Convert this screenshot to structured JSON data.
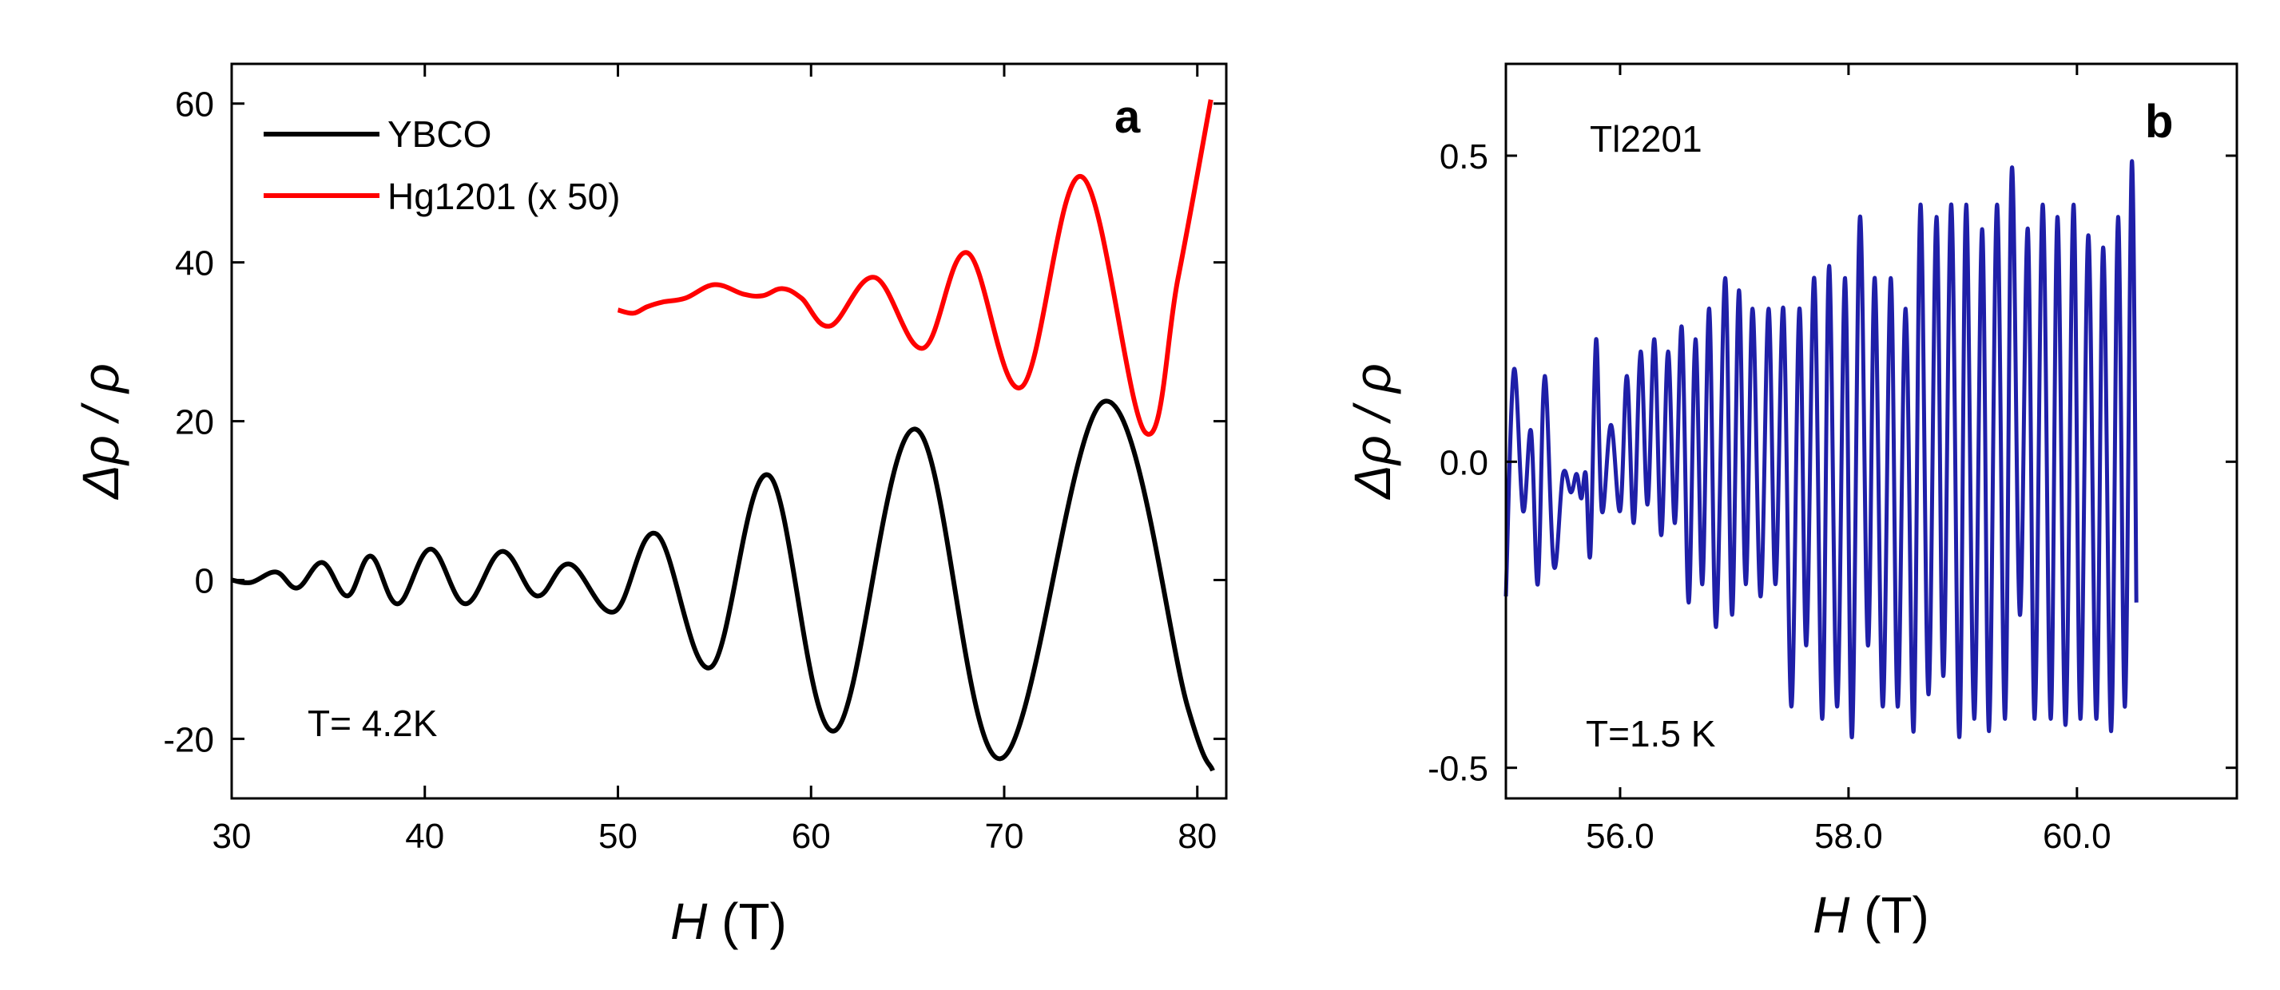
{
  "chart_data": [
    {
      "panel": "a",
      "type": "line",
      "xlabel_italic": "H",
      "xlabel_unit": " (T)",
      "ylabel": "Δρ / ρ",
      "xlim": [
        30,
        81.5
      ],
      "ylim": [
        -27.5,
        65
      ],
      "xticks": [
        30,
        40,
        50,
        60,
        70,
        80
      ],
      "yticks": [
        -20,
        0,
        20,
        40,
        60
      ],
      "annotation": "T= 4.2K",
      "legend_position": "top-left",
      "series": [
        {
          "name": "YBCO",
          "color": "#000000",
          "x": [
            30.0,
            31.0,
            32.3,
            33.4,
            34.7,
            36.0,
            37.2,
            38.6,
            40.3,
            42.1,
            44.0,
            45.8,
            47.5,
            49.8,
            52.0,
            54.8,
            57.8,
            61.2,
            65.4,
            69.8,
            75.2,
            79.5,
            80.8
          ],
          "y": [
            0.0,
            -0.3,
            1.0,
            -1.0,
            2.2,
            -2.0,
            3.0,
            -3.0,
            3.9,
            -3.0,
            3.6,
            -2.0,
            2.0,
            -4.0,
            5.8,
            -11.0,
            13.2,
            -19.0,
            19.0,
            -22.5,
            22.5,
            -16.0,
            -24.0
          ]
        },
        {
          "name": "Hg1201 (x 50)",
          "color": "#ff0000",
          "x": [
            50.0,
            50.8,
            51.5,
            52.3,
            53.5,
            55.0,
            56.5,
            57.5,
            58.5,
            59.5,
            61.0,
            63.3,
            65.8,
            68.1,
            70.9,
            74.0,
            77.3,
            79.0,
            80.7
          ],
          "y": [
            34.0,
            33.6,
            34.4,
            35.0,
            35.5,
            37.2,
            36.0,
            35.8,
            36.7,
            35.5,
            32.0,
            38.1,
            29.2,
            41.2,
            24.3,
            50.8,
            18.6,
            38.0,
            60.5
          ]
        }
      ]
    },
    {
      "panel": "b",
      "type": "line",
      "xlabel_italic": "H",
      "xlabel_unit": " (T)",
      "ylabel": "Δρ / ρ",
      "xlim": [
        55.0,
        61.4
      ],
      "ylim": [
        -0.55,
        0.65
      ],
      "xticks": [
        56.0,
        58.0,
        60.0
      ],
      "xtick_labels": [
        "56.0",
        "58.0",
        "60.0"
      ],
      "yticks": [
        -0.5,
        0.0,
        0.5
      ],
      "ytick_labels": [
        "-0.5",
        "0.0",
        "0.5"
      ],
      "title": "Tl2201",
      "annotation": "T=1.5 K",
      "series": [
        {
          "color": "#1f1fa8",
          "x": [
            55.0,
            55.07,
            55.15,
            55.22,
            55.28,
            55.34,
            55.42,
            55.5,
            55.57,
            55.62,
            55.66,
            55.7,
            55.74,
            55.79,
            55.84,
            55.92,
            56.0,
            56.06,
            56.12,
            56.18,
            56.24,
            56.3,
            56.36,
            56.42,
            56.48,
            56.54,
            56.6,
            56.66,
            56.72,
            56.78,
            56.84,
            56.92,
            56.98,
            57.04,
            57.1,
            57.16,
            57.23,
            57.3,
            57.36,
            57.43,
            57.5,
            57.57,
            57.63,
            57.7,
            57.77,
            57.83,
            57.9,
            57.97,
            58.03,
            58.1,
            58.17,
            58.23,
            58.3,
            58.37,
            58.43,
            58.5,
            58.57,
            58.63,
            58.7,
            58.77,
            58.83,
            58.9,
            58.97,
            59.03,
            59.1,
            59.17,
            59.23,
            59.3,
            59.37,
            59.43,
            59.5,
            59.57,
            59.63,
            59.7,
            59.77,
            59.83,
            59.9,
            59.97,
            60.03,
            60.1,
            60.17,
            60.23,
            60.3,
            60.36,
            60.42,
            60.48,
            60.52
          ],
          "y": [
            -0.22,
            0.15,
            -0.08,
            0.05,
            -0.2,
            0.14,
            -0.17,
            -0.02,
            -0.05,
            -0.02,
            -0.06,
            -0.02,
            -0.15,
            0.2,
            -0.08,
            0.06,
            -0.08,
            0.14,
            -0.1,
            0.18,
            -0.07,
            0.2,
            -0.12,
            0.18,
            -0.1,
            0.22,
            -0.23,
            0.2,
            -0.2,
            0.25,
            -0.27,
            0.3,
            -0.25,
            0.28,
            -0.2,
            0.25,
            -0.22,
            0.25,
            -0.2,
            0.25,
            -0.4,
            0.25,
            -0.3,
            0.3,
            -0.42,
            0.32,
            -0.4,
            0.3,
            -0.45,
            0.4,
            -0.3,
            0.3,
            -0.4,
            0.3,
            -0.4,
            0.25,
            -0.44,
            0.42,
            -0.38,
            0.4,
            -0.35,
            0.42,
            -0.45,
            0.42,
            -0.42,
            0.38,
            -0.44,
            0.42,
            -0.42,
            0.48,
            -0.25,
            0.38,
            -0.42,
            0.42,
            -0.42,
            0.4,
            -0.43,
            0.42,
            -0.42,
            0.37,
            -0.42,
            0.35,
            -0.44,
            0.4,
            -0.4,
            0.49,
            -0.23
          ]
        }
      ]
    }
  ]
}
